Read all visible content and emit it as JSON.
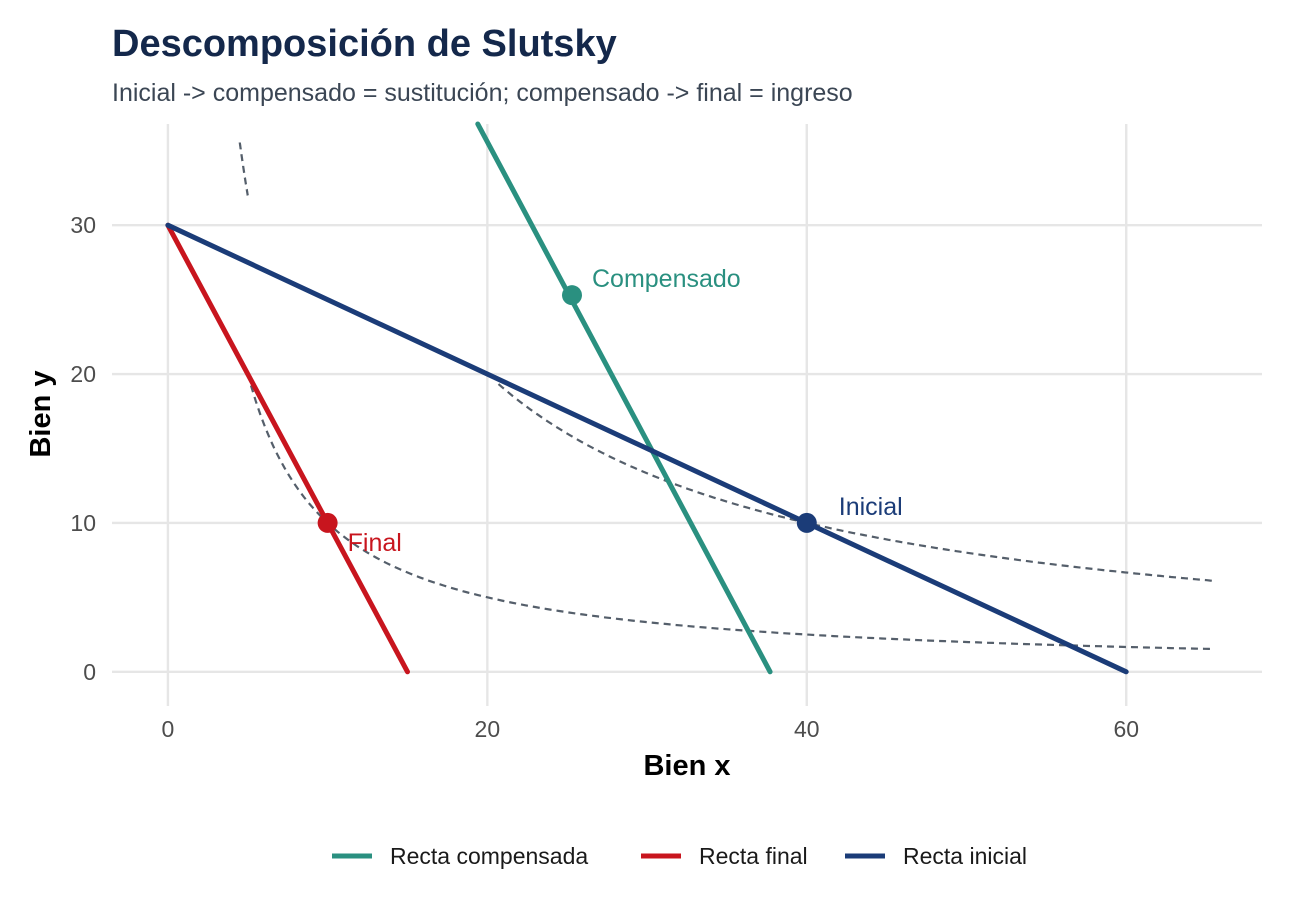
{
  "chart_data": {
    "type": "line",
    "title": "Descomposición de Slutsky",
    "subtitle": "Inicial -> compensado = sustitución; compensado -> final = ingreso",
    "xlabel": "Bien x",
    "ylabel": "Bien y",
    "xlim": [
      -3.5,
      68.5
    ],
    "ylim": [
      -2.3,
      36.8
    ],
    "x_ticks": [
      0,
      20,
      40,
      60
    ],
    "y_ticks": [
      0,
      10,
      20,
      30
    ],
    "grid": true,
    "legend_position": "bottom",
    "series": [
      {
        "name": "Recta compensada",
        "color": "#2a9080",
        "x": [
          19.4,
          37.7
        ],
        "y": [
          36.8,
          0
        ]
      },
      {
        "name": "Recta final",
        "color": "#c8151e",
        "x": [
          0,
          15
        ],
        "y": [
          30,
          0
        ]
      },
      {
        "name": "Recta inicial",
        "color": "#1b3c78",
        "x": [
          0,
          60
        ],
        "y": [
          30,
          0
        ]
      }
    ],
    "indifference_curves": [
      {
        "color": "#555f6b",
        "k": 400,
        "x_from": 20.7,
        "x_to": 65.5
      },
      {
        "color": "#555f6b",
        "k": 100,
        "x_from": 5.2,
        "x_to": 65.5
      },
      {
        "color": "#555f6b",
        "k": 160,
        "x_from": 4.5,
        "x_to": 5.0
      }
    ],
    "points": [
      {
        "label": "Compensado",
        "x": 25.3,
        "y": 25.3,
        "color": "#2a9080"
      },
      {
        "label": "Final",
        "x": 10,
        "y": 10,
        "color": "#c8151e"
      },
      {
        "label": "Inicial",
        "x": 40,
        "y": 10,
        "color": "#1b3c78"
      }
    ]
  }
}
